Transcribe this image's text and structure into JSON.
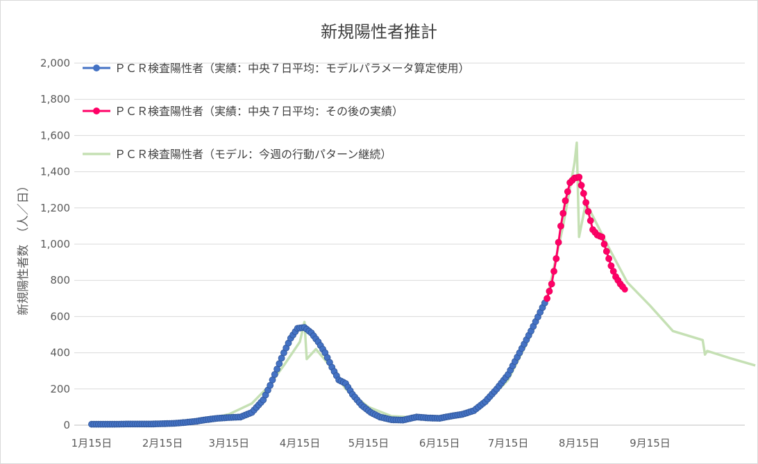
{
  "chart_data": {
    "type": "line",
    "title": "新規陽性者推計",
    "ylabel": "新規陽性者数　（人／日）",
    "xlabel": "",
    "ylim": [
      0,
      2000
    ],
    "y_ticks": [
      "0",
      "200",
      "400",
      "600",
      "800",
      "1,000",
      "1,200",
      "1,400",
      "1,600",
      "1,800",
      "2,000"
    ],
    "y_tick_values": [
      0,
      200,
      400,
      600,
      800,
      1000,
      1200,
      1400,
      1600,
      1800,
      2000
    ],
    "x_range": [
      "2020-01-15",
      "2020-10-31"
    ],
    "x_ticks": [
      "1月15日",
      "2月15日",
      "3月15日",
      "4月15日",
      "5月15日",
      "6月15日",
      "7月15日",
      "8月15日",
      "9月15日"
    ],
    "x_tick_dates": [
      "2020-01-15",
      "2020-02-15",
      "2020-03-15",
      "2020-04-15",
      "2020-05-15",
      "2020-06-15",
      "2020-07-15",
      "2020-08-15",
      "2020-09-15"
    ],
    "grid": true,
    "legend_position": "top-left",
    "series": [
      {
        "name": "ＰＣＲ検査陽性者（実績：中央７日平均：モデルパラメータ算定使用）",
        "color": "#4472c4",
        "style": "line-markers",
        "points": [
          [
            "2020-01-15",
            5
          ],
          [
            "2020-01-20",
            5
          ],
          [
            "2020-01-25",
            5
          ],
          [
            "2020-01-30",
            6
          ],
          [
            "2020-02-05",
            6
          ],
          [
            "2020-02-10",
            6
          ],
          [
            "2020-02-15",
            8
          ],
          [
            "2020-02-20",
            10
          ],
          [
            "2020-02-25",
            15
          ],
          [
            "2020-03-01",
            22
          ],
          [
            "2020-03-05",
            30
          ],
          [
            "2020-03-10",
            38
          ],
          [
            "2020-03-15",
            42
          ],
          [
            "2020-03-20",
            45
          ],
          [
            "2020-03-25",
            70
          ],
          [
            "2020-03-30",
            140
          ],
          [
            "2020-04-02",
            220
          ],
          [
            "2020-04-05",
            310
          ],
          [
            "2020-04-08",
            400
          ],
          [
            "2020-04-11",
            480
          ],
          [
            "2020-04-14",
            535
          ],
          [
            "2020-04-17",
            540
          ],
          [
            "2020-04-20",
            510
          ],
          [
            "2020-04-23",
            460
          ],
          [
            "2020-04-26",
            400
          ],
          [
            "2020-04-29",
            320
          ],
          [
            "2020-05-02",
            250
          ],
          [
            "2020-05-05",
            230
          ],
          [
            "2020-05-08",
            170
          ],
          [
            "2020-05-12",
            110
          ],
          [
            "2020-05-16",
            70
          ],
          [
            "2020-05-20",
            45
          ],
          [
            "2020-05-25",
            30
          ],
          [
            "2020-05-30",
            28
          ],
          [
            "2020-06-05",
            45
          ],
          [
            "2020-06-10",
            40
          ],
          [
            "2020-06-15",
            38
          ],
          [
            "2020-06-20",
            50
          ],
          [
            "2020-06-25",
            60
          ],
          [
            "2020-06-30",
            80
          ],
          [
            "2020-07-05",
            130
          ],
          [
            "2020-07-10",
            200
          ],
          [
            "2020-07-15",
            280
          ],
          [
            "2020-07-20",
            400
          ],
          [
            "2020-07-25",
            520
          ],
          [
            "2020-07-30",
            650
          ],
          [
            "2020-08-01",
            700
          ]
        ]
      },
      {
        "name": "ＰＣＲ検査陽性者（実績：中央７日平均：その後の実績）",
        "color": "#ff0066",
        "style": "line-markers",
        "points": [
          [
            "2020-08-01",
            700
          ],
          [
            "2020-08-03",
            780
          ],
          [
            "2020-08-05",
            920
          ],
          [
            "2020-08-07",
            1100
          ],
          [
            "2020-08-09",
            1240
          ],
          [
            "2020-08-11",
            1340
          ],
          [
            "2020-08-13",
            1365
          ],
          [
            "2020-08-15",
            1370
          ],
          [
            "2020-08-17",
            1280
          ],
          [
            "2020-08-19",
            1180
          ],
          [
            "2020-08-21",
            1080
          ],
          [
            "2020-08-23",
            1050
          ],
          [
            "2020-08-25",
            1040
          ],
          [
            "2020-08-27",
            960
          ],
          [
            "2020-08-29",
            880
          ],
          [
            "2020-08-31",
            820
          ],
          [
            "2020-09-02",
            780
          ],
          [
            "2020-09-04",
            750
          ]
        ]
      },
      {
        "name": "ＰＣＲ検査陽性者（モデル：今週の行動パターン継続）",
        "color": "#c5e0b4",
        "style": "line",
        "points": [
          [
            "2020-01-15",
            3
          ],
          [
            "2020-02-15",
            8
          ],
          [
            "2020-03-01",
            22
          ],
          [
            "2020-03-15",
            60
          ],
          [
            "2020-03-25",
            120
          ],
          [
            "2020-04-01",
            210
          ],
          [
            "2020-04-08",
            330
          ],
          [
            "2020-04-15",
            460
          ],
          [
            "2020-04-17",
            570
          ],
          [
            "2020-04-18",
            365
          ],
          [
            "2020-04-22",
            420
          ],
          [
            "2020-04-28",
            330
          ],
          [
            "2020-05-05",
            200
          ],
          [
            "2020-05-15",
            100
          ],
          [
            "2020-05-25",
            50
          ],
          [
            "2020-06-10",
            40
          ],
          [
            "2020-06-25",
            60
          ],
          [
            "2020-07-05",
            120
          ],
          [
            "2020-07-15",
            250
          ],
          [
            "2020-07-25",
            500
          ],
          [
            "2020-08-01",
            700
          ],
          [
            "2020-08-08",
            1100
          ],
          [
            "2020-08-13",
            1450
          ],
          [
            "2020-08-14",
            1560
          ],
          [
            "2020-08-15",
            1040
          ],
          [
            "2020-08-18",
            1230
          ],
          [
            "2020-08-22",
            1130
          ],
          [
            "2020-08-28",
            980
          ],
          [
            "2020-09-05",
            790
          ],
          [
            "2020-09-15",
            660
          ],
          [
            "2020-09-25",
            520
          ],
          [
            "2020-10-08",
            470
          ],
          [
            "2020-10-09",
            390
          ],
          [
            "2020-10-10",
            410
          ],
          [
            "2020-10-20",
            370
          ],
          [
            "2020-10-31",
            330
          ]
        ]
      }
    ]
  }
}
